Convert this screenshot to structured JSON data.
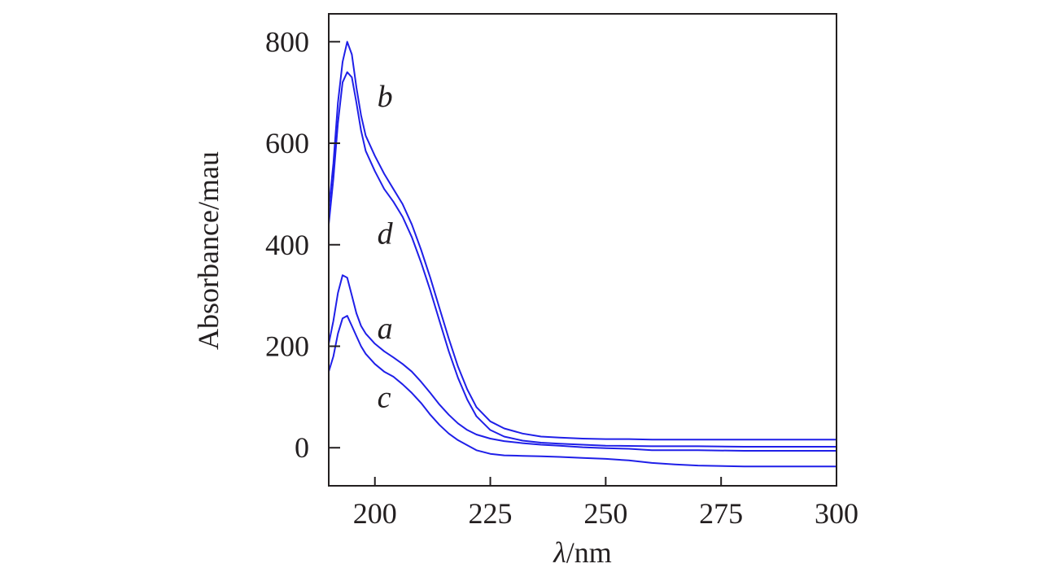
{
  "chart_data": {
    "type": "line",
    "xlabel_symbol": "λ",
    "xlabel_unit": "/nm",
    "ylabel": "Absorbance/mau",
    "xlim": [
      190,
      300
    ],
    "ylim": [
      -75,
      855
    ],
    "xticks": [
      200,
      225,
      250,
      275,
      300
    ],
    "yticks": [
      0,
      200,
      400,
      600,
      800
    ],
    "grid": false,
    "line_color": "#1f1fe8",
    "frame_color": "#231f20",
    "series": [
      {
        "name": "b",
        "label_at": [
          200.5,
          672
        ],
        "points": [
          [
            190,
            470
          ],
          [
            191,
            560
          ],
          [
            192,
            680
          ],
          [
            193,
            760
          ],
          [
            194,
            800
          ],
          [
            195,
            775
          ],
          [
            196,
            710
          ],
          [
            197,
            655
          ],
          [
            198,
            615
          ],
          [
            200,
            575
          ],
          [
            202,
            540
          ],
          [
            204,
            510
          ],
          [
            206,
            480
          ],
          [
            208,
            440
          ],
          [
            210,
            390
          ],
          [
            212,
            335
          ],
          [
            214,
            275
          ],
          [
            216,
            215
          ],
          [
            218,
            160
          ],
          [
            220,
            115
          ],
          [
            222,
            80
          ],
          [
            225,
            52
          ],
          [
            228,
            38
          ],
          [
            232,
            28
          ],
          [
            236,
            22
          ],
          [
            240,
            20
          ],
          [
            245,
            18
          ],
          [
            250,
            17
          ],
          [
            255,
            17
          ],
          [
            260,
            16
          ],
          [
            270,
            16
          ],
          [
            280,
            16
          ],
          [
            290,
            16
          ],
          [
            300,
            16
          ]
        ]
      },
      {
        "name": "d",
        "label_at": [
          200.5,
          402
        ],
        "points": [
          [
            190,
            440
          ],
          [
            191,
            530
          ],
          [
            192,
            640
          ],
          [
            193,
            720
          ],
          [
            194,
            740
          ],
          [
            195,
            730
          ],
          [
            196,
            680
          ],
          [
            197,
            625
          ],
          [
            198,
            585
          ],
          [
            200,
            545
          ],
          [
            202,
            510
          ],
          [
            204,
            485
          ],
          [
            206,
            455
          ],
          [
            208,
            415
          ],
          [
            210,
            365
          ],
          [
            212,
            310
          ],
          [
            214,
            250
          ],
          [
            216,
            190
          ],
          [
            218,
            138
          ],
          [
            220,
            95
          ],
          [
            222,
            62
          ],
          [
            225,
            35
          ],
          [
            228,
            22
          ],
          [
            232,
            14
          ],
          [
            236,
            10
          ],
          [
            240,
            8
          ],
          [
            245,
            6
          ],
          [
            250,
            4
          ],
          [
            260,
            3
          ],
          [
            270,
            3
          ],
          [
            280,
            2
          ],
          [
            290,
            2
          ],
          [
            300,
            2
          ]
        ]
      },
      {
        "name": "a",
        "label_at": [
          200.5,
          215
        ],
        "points": [
          [
            190,
            205
          ],
          [
            191,
            250
          ],
          [
            192,
            305
          ],
          [
            193,
            340
          ],
          [
            194,
            335
          ],
          [
            195,
            300
          ],
          [
            196,
            265
          ],
          [
            197,
            240
          ],
          [
            198,
            225
          ],
          [
            200,
            205
          ],
          [
            202,
            190
          ],
          [
            204,
            178
          ],
          [
            206,
            165
          ],
          [
            208,
            150
          ],
          [
            210,
            130
          ],
          [
            212,
            108
          ],
          [
            214,
            85
          ],
          [
            216,
            65
          ],
          [
            218,
            48
          ],
          [
            220,
            35
          ],
          [
            222,
            26
          ],
          [
            225,
            18
          ],
          [
            228,
            13
          ],
          [
            232,
            9
          ],
          [
            236,
            6
          ],
          [
            240,
            4
          ],
          [
            245,
            1
          ],
          [
            250,
            -1
          ],
          [
            255,
            -2
          ],
          [
            260,
            -5
          ],
          [
            270,
            -5
          ],
          [
            280,
            -6
          ],
          [
            290,
            -6
          ],
          [
            300,
            -6
          ]
        ]
      },
      {
        "name": "c",
        "label_at": [
          200.5,
          80
        ],
        "points": [
          [
            190,
            150
          ],
          [
            191,
            180
          ],
          [
            192,
            225
          ],
          [
            193,
            255
          ],
          [
            194,
            260
          ],
          [
            195,
            240
          ],
          [
            196,
            220
          ],
          [
            197,
            200
          ],
          [
            198,
            185
          ],
          [
            200,
            165
          ],
          [
            202,
            150
          ],
          [
            204,
            140
          ],
          [
            206,
            125
          ],
          [
            208,
            108
          ],
          [
            210,
            88
          ],
          [
            212,
            65
          ],
          [
            214,
            45
          ],
          [
            216,
            28
          ],
          [
            218,
            15
          ],
          [
            220,
            5
          ],
          [
            222,
            -5
          ],
          [
            225,
            -12
          ],
          [
            228,
            -15
          ],
          [
            232,
            -16
          ],
          [
            236,
            -17
          ],
          [
            240,
            -18
          ],
          [
            245,
            -20
          ],
          [
            250,
            -22
          ],
          [
            255,
            -25
          ],
          [
            260,
            -30
          ],
          [
            265,
            -33
          ],
          [
            270,
            -35
          ],
          [
            280,
            -37
          ],
          [
            290,
            -37
          ],
          [
            300,
            -37
          ]
        ]
      }
    ]
  }
}
